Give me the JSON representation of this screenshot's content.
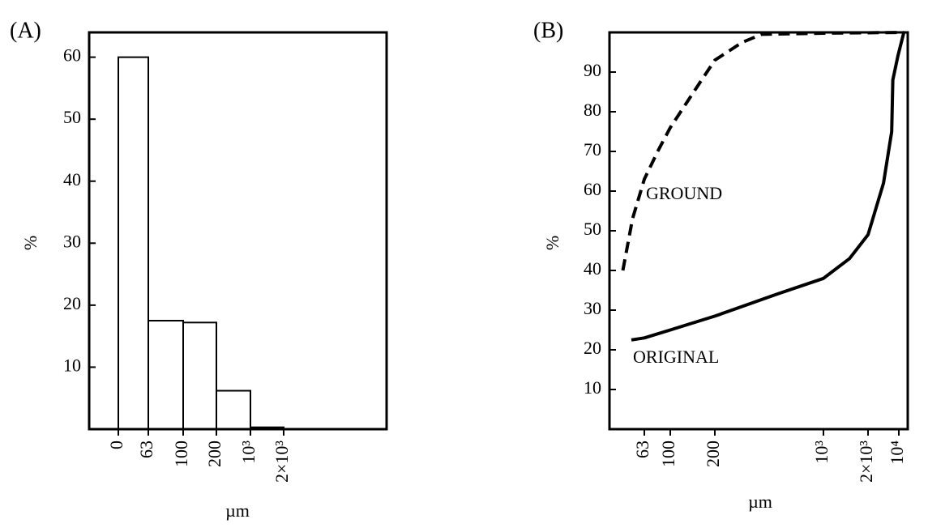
{
  "chart_data": [
    {
      "type": "histogram",
      "title": "(A)",
      "ylabel": "%",
      "xlabel": "µm",
      "bins": [
        0,
        63,
        100,
        200,
        1000,
        2000
      ],
      "values": [
        60,
        17.5,
        17.2,
        6.2,
        0.3
      ],
      "color": "#ffffff",
      "ylim": [
        0,
        64
      ],
      "yticks": [
        10,
        20,
        30,
        40,
        50,
        60
      ],
      "xticks": [
        0,
        63,
        100,
        200,
        {
          "value": 1000,
          "label": "10³"
        },
        {
          "value": 2000,
          "label": "2×10³"
        }
      ]
    },
    {
      "type": "line",
      "title": "(B)",
      "ylabel": "%",
      "xlabel": "µm",
      "log_x": true,
      "ylim": [
        0,
        100
      ],
      "yticks": [
        10,
        20,
        30,
        40,
        50,
        60,
        70,
        80,
        90
      ],
      "xticks": [
        63,
        100,
        200,
        {
          "value": 1000,
          "label": "10³"
        },
        {
          "value": 2000,
          "label": "2×10³"
        },
        {
          "value": 10000,
          "label": "10⁴"
        }
      ],
      "series": [
        {
          "name": "GROUND",
          "color": "#000000",
          "dashed": true,
          "x": [
            43,
            51,
            63,
            80,
            100,
            150,
            200,
            300,
            400,
            1000,
            13000
          ],
          "values": [
            40,
            53,
            63,
            70,
            76,
            86,
            93,
            97.5,
            99.5,
            99.8,
            100
          ]
        },
        {
          "name": "ORIGINAL",
          "color": "#000000",
          "dashed": false,
          "x": [
            50,
            63,
            100,
            200,
            500,
            1000,
            1500,
            2000,
            4500,
            6900,
            7300,
            9500,
            13000
          ],
          "values": [
            22.5,
            23,
            25,
            28.5,
            34,
            38,
            43,
            49,
            62,
            75,
            88,
            94,
            100
          ]
        }
      ]
    }
  ]
}
